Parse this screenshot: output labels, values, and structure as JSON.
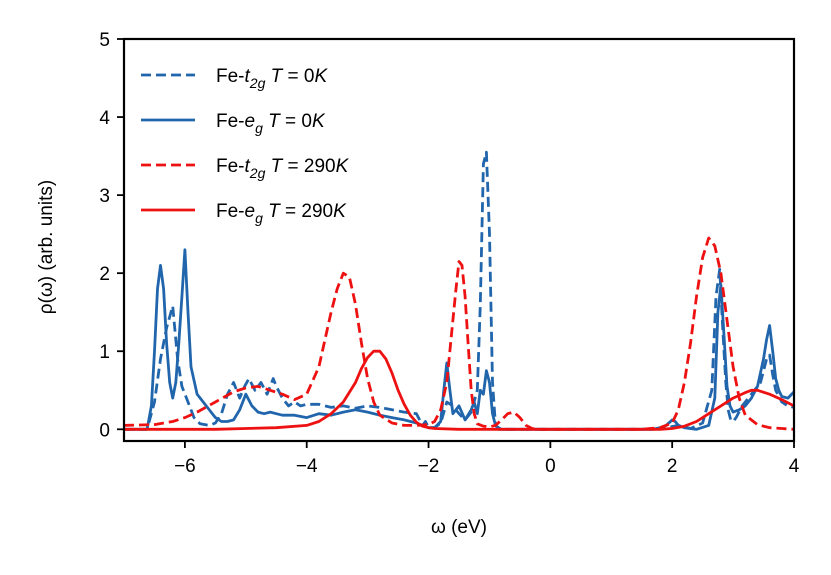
{
  "chart_data": {
    "type": "line",
    "title": "",
    "xlabel": "ω (eV)",
    "ylabel": "ρ(ω) (arb. units)",
    "xlim": [
      -7,
      4
    ],
    "ylim": [
      -0.15,
      5
    ],
    "xticks": [
      -6,
      -4,
      -2,
      0,
      2,
      4
    ],
    "xtick_labels": [
      "−6",
      "−4",
      "−2",
      "0",
      "2",
      "4"
    ],
    "yticks": [
      0,
      1,
      2,
      3,
      4,
      5
    ],
    "ytick_labels": [
      "0",
      "1",
      "2",
      "3",
      "4",
      "5"
    ],
    "legend_position": "top-left",
    "series": [
      {
        "name": "Fe-t2g T = 0K",
        "label_parts": [
          "Fe-",
          "t",
          "2g",
          " T",
          " = 0",
          "K"
        ],
        "color": "#2166ac",
        "dash": "dashed",
        "x": [
          -7,
          -6.62,
          -6.5,
          -6.4,
          -6.3,
          -6.2,
          -6.12,
          -6.05,
          -5.95,
          -5.85,
          -5.75,
          -5.6,
          -5.5,
          -5.4,
          -5.3,
          -5.2,
          -5.1,
          -5.02,
          -4.95,
          -4.85,
          -4.75,
          -4.65,
          -4.55,
          -4.5,
          -4.4,
          -4.3,
          -4.2,
          -4.1,
          -4.0,
          -3.8,
          -3.6,
          -3.4,
          -3.2,
          -3.0,
          -2.8,
          -2.6,
          -2.4,
          -2.2,
          -2.1,
          -2.05,
          -2.0,
          -1.9,
          -1.8,
          -1.7,
          -1.6,
          -1.5,
          -1.4,
          -1.3,
          -1.2,
          -1.15,
          -1.1,
          -1.05,
          -1.0,
          -0.95,
          -0.9,
          -0.85,
          -0.8,
          -0.5,
          0,
          1,
          1.5,
          1.9,
          2.1,
          2.3,
          2.5,
          2.65,
          2.72,
          2.78,
          2.83,
          2.88,
          2.92,
          2.96,
          3.0,
          3.05,
          3.15,
          3.3,
          3.45,
          3.55,
          3.6,
          3.65,
          3.7,
          3.8,
          3.9,
          4.0
        ],
        "y": [
          0,
          0,
          0.35,
          0.9,
          1.3,
          1.58,
          0.9,
          0.55,
          0.35,
          0.15,
          0.07,
          0.05,
          0.08,
          0.2,
          0.45,
          0.6,
          0.4,
          0.55,
          0.65,
          0.5,
          0.6,
          0.45,
          0.65,
          0.55,
          0.4,
          0.3,
          0.35,
          0.3,
          0.32,
          0.32,
          0.28,
          0.3,
          0.27,
          0.3,
          0.28,
          0.25,
          0.22,
          0.2,
          0.05,
          0.1,
          0.02,
          0.02,
          0.08,
          0.35,
          0.3,
          0.2,
          0.12,
          0.22,
          0.5,
          1.6,
          3.4,
          3.55,
          2.5,
          0.6,
          0.05,
          0.02,
          0,
          0,
          0,
          0,
          0,
          0.02,
          0.05,
          0.01,
          0.08,
          0.5,
          1.7,
          2.05,
          1.3,
          0.6,
          0.25,
          0.12,
          0.1,
          0.15,
          0.3,
          0.45,
          0.6,
          0.9,
          0.95,
          0.7,
          0.5,
          0.35,
          0.3,
          0.28
        ]
      },
      {
        "name": "Fe-eg T = 0K",
        "label_parts": [
          "Fe-",
          "e",
          "g",
          " T",
          " = 0",
          "K"
        ],
        "color": "#2166ac",
        "dash": "solid",
        "x": [
          -7,
          -6.62,
          -6.55,
          -6.5,
          -6.45,
          -6.4,
          -6.35,
          -6.3,
          -6.25,
          -6.2,
          -6.15,
          -6.1,
          -6.05,
          -6.0,
          -5.95,
          -5.9,
          -5.8,
          -5.7,
          -5.6,
          -5.5,
          -5.4,
          -5.3,
          -5.2,
          -5.1,
          -5.0,
          -4.9,
          -4.8,
          -4.7,
          -4.6,
          -4.5,
          -4.4,
          -4.2,
          -4.0,
          -3.8,
          -3.6,
          -3.4,
          -3.2,
          -3.0,
          -2.8,
          -2.6,
          -2.4,
          -2.2,
          -2.1,
          -2.0,
          -1.9,
          -1.8,
          -1.75,
          -1.7,
          -1.65,
          -1.6,
          -1.5,
          -1.4,
          -1.3,
          -1.25,
          -1.2,
          -1.15,
          -1.1,
          -1.05,
          -1.0,
          -0.95,
          -0.9,
          -0.85,
          -0.8,
          -0.5,
          0,
          1,
          1.7,
          1.8,
          1.9,
          2.0,
          2.05,
          2.1,
          2.2,
          2.4,
          2.6,
          2.7,
          2.75,
          2.8,
          2.85,
          2.9,
          2.95,
          3.0,
          3.1,
          3.2,
          3.3,
          3.4,
          3.5,
          3.55,
          3.6,
          3.65,
          3.7,
          3.75,
          3.8,
          3.9,
          4.0
        ],
        "y": [
          0,
          0,
          0.3,
          1.0,
          1.8,
          2.1,
          1.8,
          1.1,
          0.6,
          0.4,
          0.6,
          1.1,
          1.7,
          2.3,
          1.5,
          0.8,
          0.45,
          0.35,
          0.25,
          0.15,
          0.1,
          0.1,
          0.12,
          0.25,
          0.45,
          0.3,
          0.22,
          0.2,
          0.22,
          0.2,
          0.18,
          0.18,
          0.15,
          0.2,
          0.18,
          0.22,
          0.25,
          0.22,
          0.18,
          0.15,
          0.12,
          0.08,
          0.05,
          0.02,
          0.02,
          0.1,
          0.5,
          0.85,
          0.5,
          0.2,
          0.3,
          0.12,
          0.25,
          0.35,
          0.2,
          0.5,
          0.45,
          0.75,
          0.6,
          0.2,
          0.05,
          0,
          0,
          0,
          0,
          0,
          0,
          0.02,
          0.05,
          0.12,
          0.1,
          0.05,
          0.02,
          0,
          0.05,
          0.4,
          1.5,
          1.85,
          1.2,
          0.55,
          0.3,
          0.22,
          0.25,
          0.3,
          0.4,
          0.55,
          0.9,
          1.15,
          1.33,
          1.0,
          0.65,
          0.5,
          0.42,
          0.4,
          0.48
        ]
      },
      {
        "name": "Fe-t2g T = 290K",
        "label_parts": [
          "Fe-",
          "t",
          "2g",
          " T",
          " = 290",
          "K"
        ],
        "color": "#ee1111",
        "dash": "dashed",
        "x": [
          -7,
          -6.5,
          -6.2,
          -6.0,
          -5.8,
          -5.5,
          -5.2,
          -5.0,
          -4.8,
          -4.6,
          -4.4,
          -4.2,
          -4.0,
          -3.8,
          -3.6,
          -3.5,
          -3.4,
          -3.3,
          -3.2,
          -3.1,
          -3.0,
          -2.9,
          -2.8,
          -2.6,
          -2.4,
          -2.2,
          -2.0,
          -1.9,
          -1.8,
          -1.7,
          -1.6,
          -1.55,
          -1.5,
          -1.45,
          -1.4,
          -1.35,
          -1.3,
          -1.25,
          -1.2,
          -1.1,
          -1.0,
          -0.9,
          -0.8,
          -0.7,
          -0.6,
          -0.5,
          -0.4,
          -0.3,
          -0.2,
          0,
          0.5,
          1.0,
          1.5,
          1.8,
          2.0,
          2.1,
          2.2,
          2.3,
          2.4,
          2.5,
          2.6,
          2.7,
          2.8,
          2.9,
          3.0,
          3.1,
          3.2,
          3.4,
          3.6,
          3.8,
          4.0
        ],
        "y": [
          0.05,
          0.06,
          0.1,
          0.15,
          0.22,
          0.35,
          0.48,
          0.53,
          0.55,
          0.5,
          0.45,
          0.38,
          0.45,
          0.8,
          1.5,
          1.8,
          2.0,
          1.95,
          1.6,
          1.1,
          0.65,
          0.35,
          0.18,
          0.08,
          0.05,
          0.05,
          0.06,
          0.1,
          0.25,
          0.6,
          1.4,
          1.8,
          2.15,
          2.1,
          1.7,
          1.1,
          0.5,
          0.2,
          0.07,
          0.04,
          0.03,
          0.05,
          0.12,
          0.2,
          0.22,
          0.15,
          0.05,
          0.01,
          0,
          0,
          0,
          0,
          0,
          0.02,
          0.08,
          0.25,
          0.6,
          1.1,
          1.7,
          2.2,
          2.45,
          2.35,
          2.0,
          1.4,
          0.8,
          0.4,
          0.18,
          0.06,
          0.02,
          0.01,
          0
        ]
      },
      {
        "name": "Fe-eg T = 290K",
        "label_parts": [
          "Fe-",
          "e",
          "g",
          " T",
          " = 290",
          "K"
        ],
        "color": "#ee1111",
        "dash": "solid",
        "x": [
          -7,
          -6.0,
          -5.5,
          -5.0,
          -4.5,
          -4.0,
          -3.8,
          -3.6,
          -3.4,
          -3.2,
          -3.1,
          -3.0,
          -2.9,
          -2.8,
          -2.7,
          -2.6,
          -2.5,
          -2.4,
          -2.3,
          -2.2,
          -2.1,
          -2.0,
          -1.9,
          -1.5,
          -1.0,
          0,
          1.0,
          1.8,
          2.0,
          2.2,
          2.4,
          2.6,
          2.8,
          3.0,
          3.2,
          3.3,
          3.4,
          3.6,
          3.8,
          4.0
        ],
        "y": [
          0,
          0,
          0,
          0.01,
          0.02,
          0.05,
          0.1,
          0.2,
          0.35,
          0.6,
          0.78,
          0.92,
          1.0,
          1.0,
          0.9,
          0.72,
          0.5,
          0.32,
          0.18,
          0.09,
          0.04,
          0.02,
          0.01,
          0,
          0,
          0,
          0,
          0,
          0.01,
          0.04,
          0.1,
          0.2,
          0.3,
          0.4,
          0.47,
          0.5,
          0.5,
          0.45,
          0.38,
          0.3
        ]
      }
    ]
  }
}
